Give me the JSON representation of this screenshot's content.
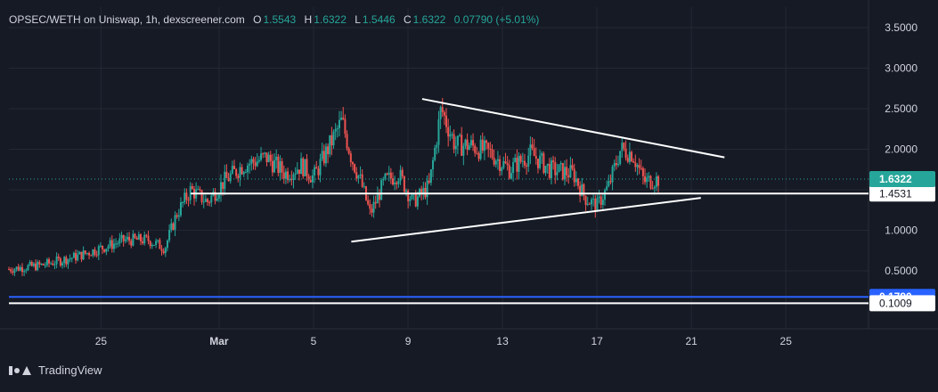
{
  "header": {
    "symbol": "OPSEC/WETH on Uniswap, 1h, dexscreener.com",
    "o_label": "O",
    "o_value": "1.5543",
    "h_label": "H",
    "h_value": "1.6322",
    "l_label": "L",
    "l_value": "1.5446",
    "c_label": "C",
    "c_value": "1.6322",
    "change": "0.07790 (+5.01%)"
  },
  "footer": {
    "brand": "TradingView"
  },
  "colors": {
    "background": "#161a25",
    "grid": "#232834",
    "up": "#26a69a",
    "down": "#ef5350",
    "text": "#d1d4dc",
    "price_badge": "#26a69a",
    "blue_line": "#2962ff",
    "white_line": "#ffffff"
  },
  "chart_data": {
    "type": "candlestick",
    "title": "",
    "y_ticks": [
      "3.5000",
      "3.0000",
      "2.5000",
      "2.0000",
      "1.5000",
      "1.0000",
      "0.5000"
    ],
    "y_tick_values": [
      3.5,
      3.0,
      2.5,
      2.0,
      1.5,
      1.0,
      0.5
    ],
    "ylim": [
      -0.9,
      3.5
    ],
    "x_ticks": [
      "25",
      "Mar",
      "5",
      "9",
      "13",
      "17",
      "21",
      "25"
    ],
    "x_tick_days": [
      -5,
      0,
      4,
      8,
      12,
      16,
      20,
      24
    ],
    "xlim": [
      -8.9,
      27.5
    ],
    "series_end_day": 18.6,
    "price_trajectory": [
      [
        -8.9,
        0.52
      ],
      [
        -7.5,
        0.57
      ],
      [
        -6,
        0.68
      ],
      [
        -5,
        0.78
      ],
      [
        -4,
        0.88
      ],
      [
        -3,
        0.88
      ],
      [
        -2.3,
        0.78
      ],
      [
        -1.8,
        1.2
      ],
      [
        -1.2,
        1.5
      ],
      [
        -0.5,
        1.35
      ],
      [
        0.2,
        1.6
      ],
      [
        1,
        1.8
      ],
      [
        2,
        1.9
      ],
      [
        2.8,
        1.7
      ],
      [
        3.5,
        1.8
      ],
      [
        4,
        1.65
      ],
      [
        4.6,
        2.0
      ],
      [
        5.2,
        2.35
      ],
      [
        5.6,
        1.9
      ],
      [
        6,
        1.6
      ],
      [
        6.4,
        1.2
      ],
      [
        7,
        1.6
      ],
      [
        7.6,
        1.7
      ],
      [
        8.2,
        1.35
      ],
      [
        8.6,
        1.45
      ],
      [
        8.9,
        1.55
      ],
      [
        9.4,
        2.5
      ],
      [
        10,
        2.05
      ],
      [
        10.6,
        2.05
      ],
      [
        11.5,
        1.95
      ],
      [
        12.3,
        1.75
      ],
      [
        13.2,
        1.95
      ],
      [
        14,
        1.75
      ],
      [
        15,
        1.7
      ],
      [
        15.5,
        1.4
      ],
      [
        16,
        1.3
      ],
      [
        16.5,
        1.55
      ],
      [
        17,
        2.0
      ],
      [
        17.5,
        1.95
      ],
      [
        18,
        1.6
      ],
      [
        18.6,
        1.6322
      ]
    ],
    "annotations": {
      "resistance_trendline": {
        "from": [
          8.6,
          2.62
        ],
        "to": [
          21.4,
          1.9
        ]
      },
      "support_trendline": {
        "from": [
          5.6,
          0.86
        ],
        "to": [
          20.4,
          1.4
        ]
      },
      "horizontal_levels": [
        {
          "value": 1.4531,
          "label": "1.4531",
          "from_day": -1.2,
          "color": "white"
        },
        {
          "value": 0.179,
          "label": "0.1790",
          "color": "blue"
        },
        {
          "value": 0.1009,
          "label": "0.1009",
          "color": "white"
        }
      ],
      "last_price": {
        "value": 1.6322,
        "label": "1.6322"
      }
    }
  }
}
